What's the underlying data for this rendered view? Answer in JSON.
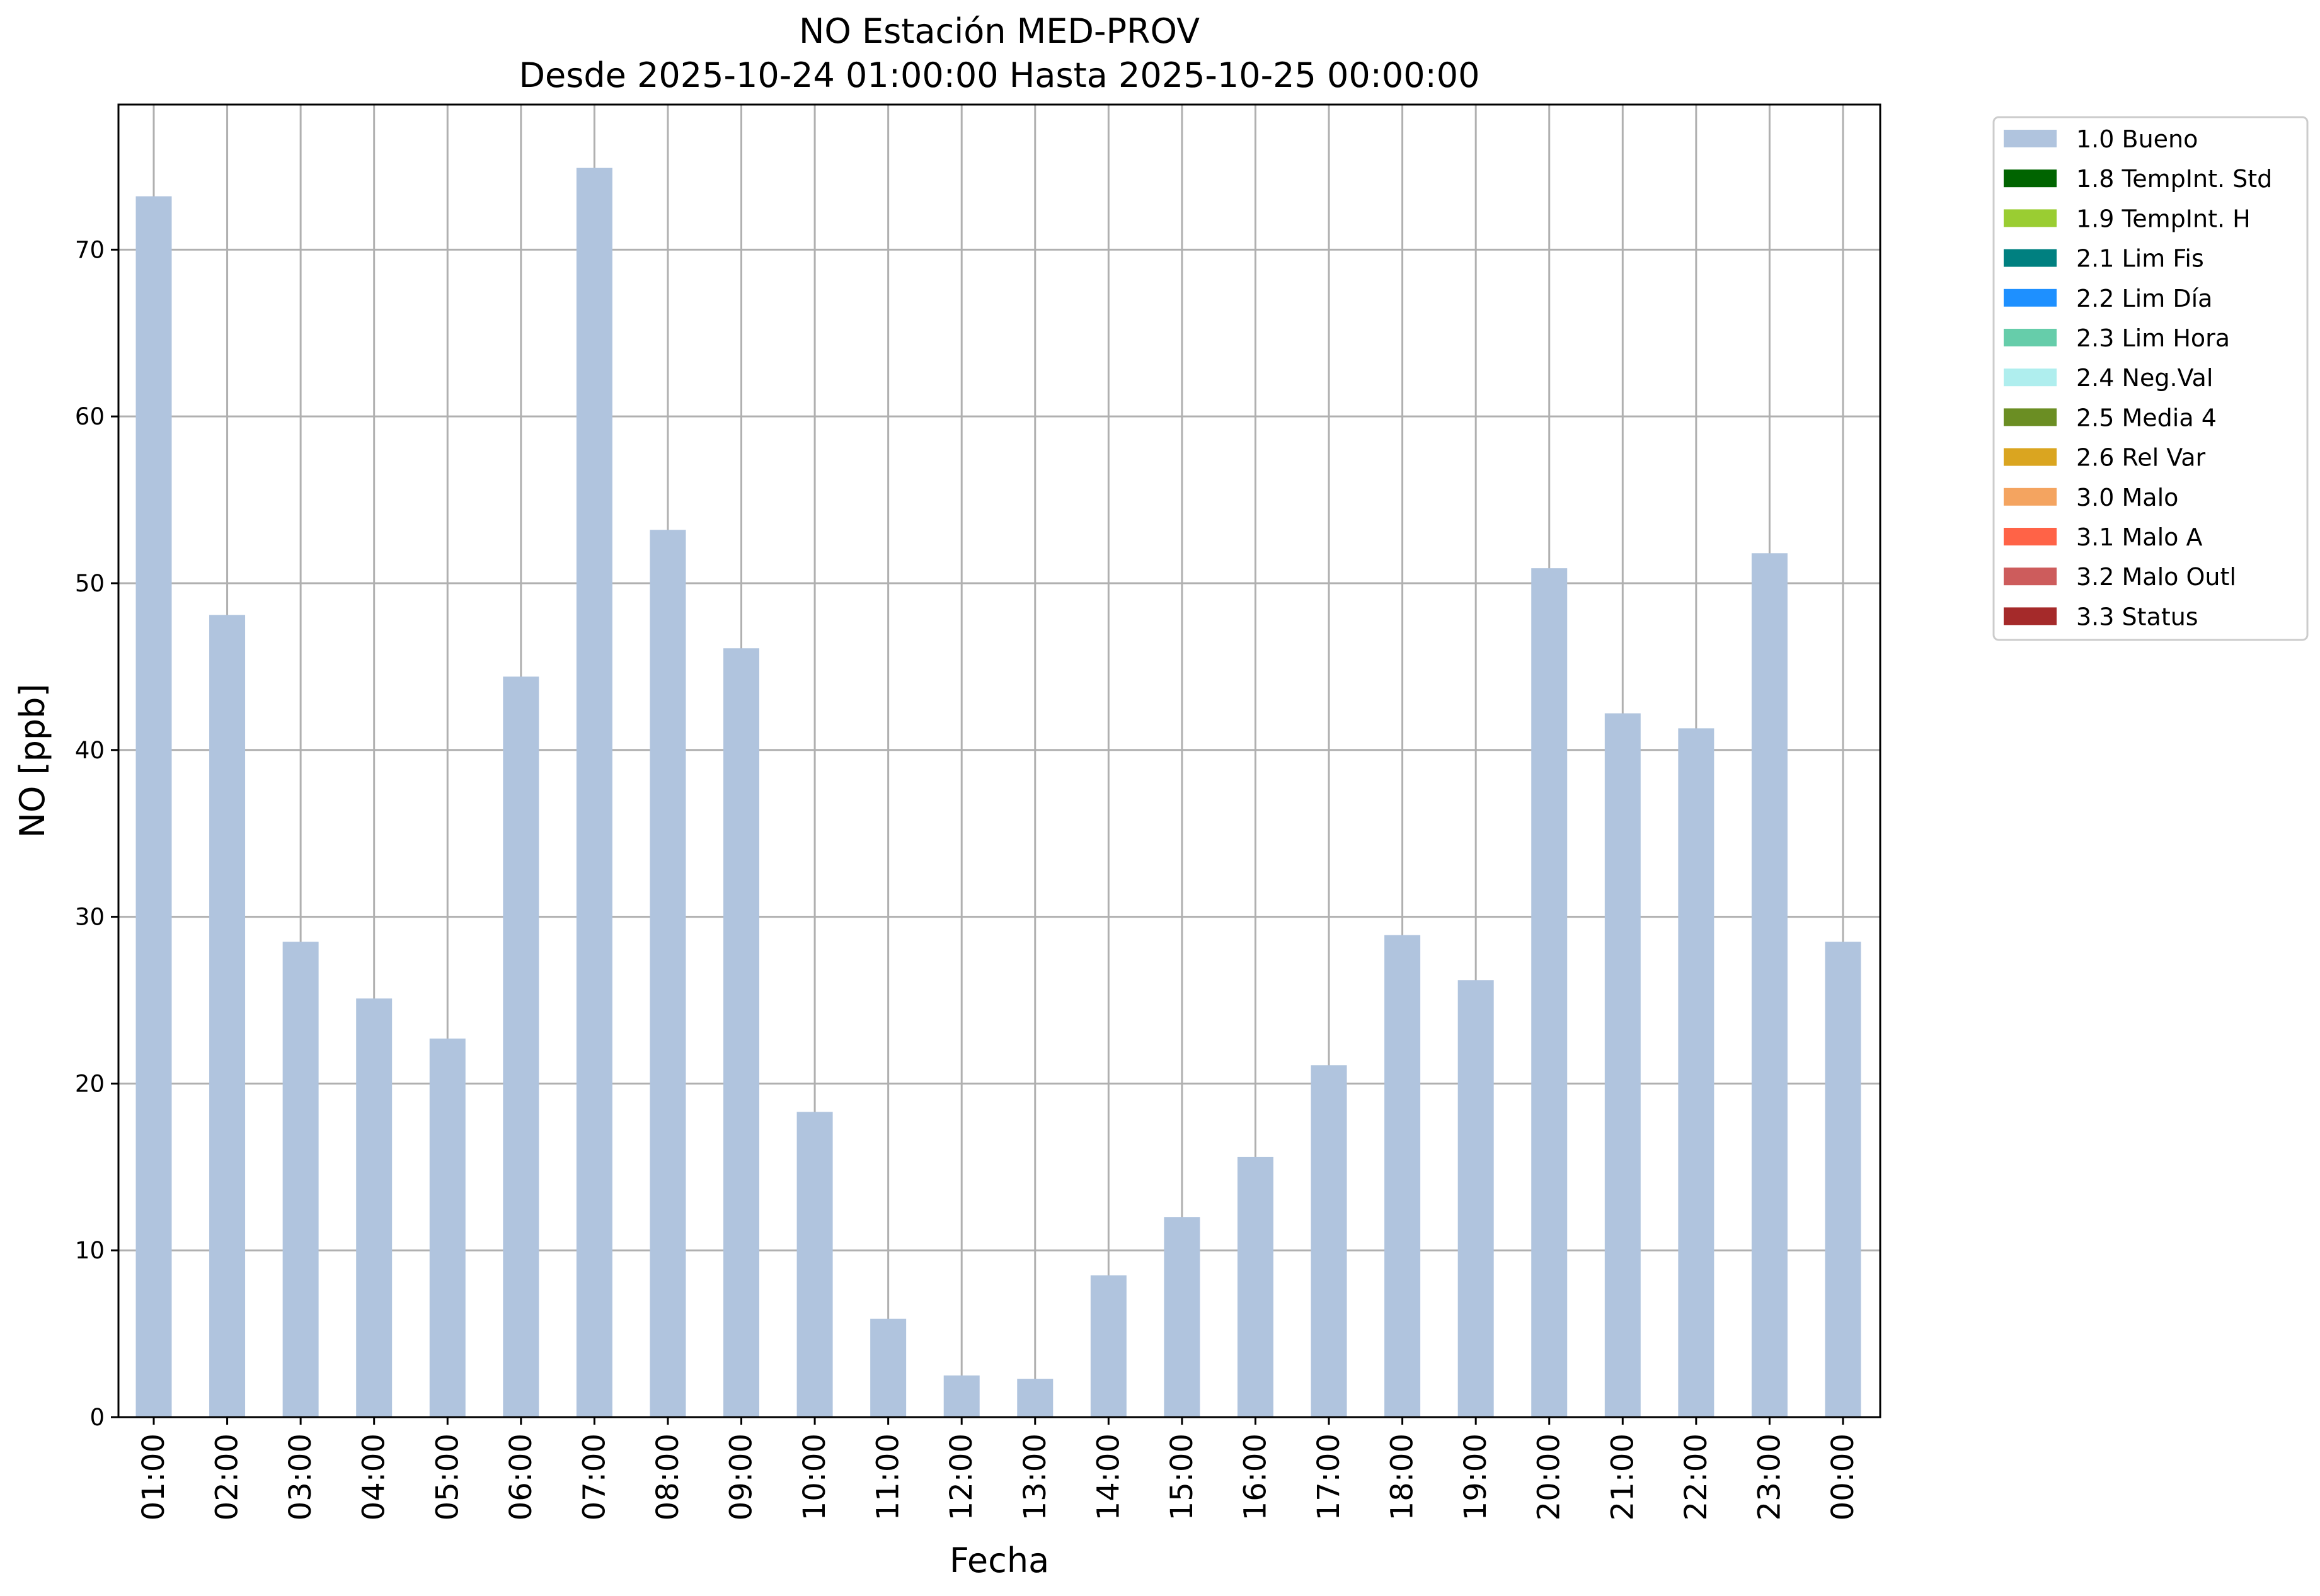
{
  "chart_data": {
    "type": "bar",
    "title": "NO Estación MED-PROV",
    "subtitle": "Desde 2025-10-24 01:00:00 Hasta 2025-10-25 00:00:00",
    "xlabel": "Fecha",
    "ylabel": "NO [ppb]",
    "ylim": [
      0,
      78.7
    ],
    "yticks": [
      0,
      10,
      20,
      30,
      40,
      50,
      60,
      70
    ],
    "grid": true,
    "legend_position": "outside top-right",
    "categories": [
      "01:00",
      "02:00",
      "03:00",
      "04:00",
      "05:00",
      "06:00",
      "07:00",
      "08:00",
      "09:00",
      "10:00",
      "11:00",
      "12:00",
      "13:00",
      "14:00",
      "15:00",
      "16:00",
      "17:00",
      "18:00",
      "19:00",
      "20:00",
      "21:00",
      "22:00",
      "23:00",
      "00:00"
    ],
    "series": [
      {
        "name": "1.0 Bueno",
        "color": "#b0c4de",
        "values": [
          73.2,
          48.1,
          28.5,
          25.1,
          22.7,
          44.4,
          74.9,
          53.2,
          46.1,
          18.3,
          5.9,
          2.5,
          2.3,
          8.5,
          12.0,
          15.6,
          21.1,
          28.9,
          26.2,
          50.9,
          42.2,
          41.3,
          51.8,
          28.5
        ]
      }
    ],
    "legend": [
      {
        "label": "1.0 Bueno",
        "color": "#b0c4de"
      },
      {
        "label": "1.8 TempInt. Std",
        "color": "#006400"
      },
      {
        "label": "1.9 TempInt. H",
        "color": "#9acd32"
      },
      {
        "label": "2.1 Lim Fis",
        "color": "#008080"
      },
      {
        "label": "2.2 Lim Día",
        "color": "#1e90ff"
      },
      {
        "label": "2.3 Lim Hora",
        "color": "#66cdaa"
      },
      {
        "label": "2.4 Neg.Val",
        "color": "#afeeee"
      },
      {
        "label": "2.5 Media 4",
        "color": "#6b8e23"
      },
      {
        "label": "2.6 Rel Var",
        "color": "#daa520"
      },
      {
        "label": "3.0 Malo",
        "color": "#f4a460"
      },
      {
        "label": "3.1 Malo A",
        "color": "#ff6347"
      },
      {
        "label": "3.2 Malo Outl",
        "color": "#cd5c5c"
      },
      {
        "label": "3.3 Status",
        "color": "#a52a2a"
      }
    ]
  }
}
